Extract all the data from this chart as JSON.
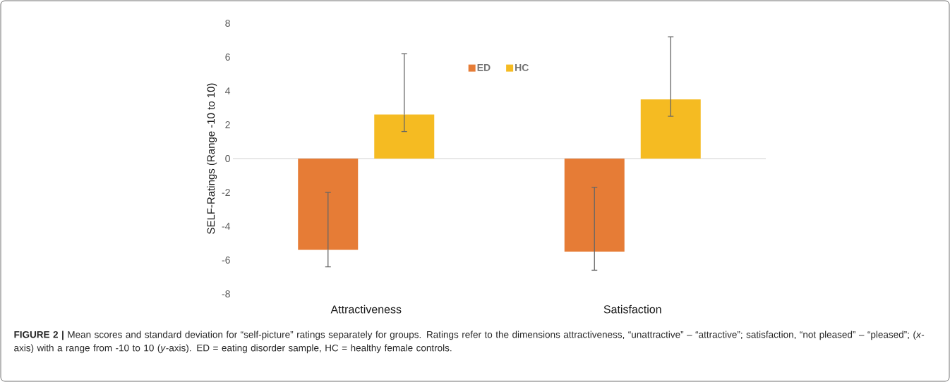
{
  "chart_data": {
    "type": "bar",
    "categories": [
      "Attractiveness",
      "Satisfaction"
    ],
    "series": [
      {
        "name": "ED",
        "color": "#e67c36",
        "values": [
          -5.4,
          -5.5
        ],
        "errors": [
          [
            -6.4,
            -2.0
          ],
          [
            -6.6,
            -1.7
          ]
        ]
      },
      {
        "name": "HC",
        "color": "#f5bb22",
        "values": [
          2.6,
          3.5
        ],
        "errors": [
          [
            1.6,
            6.2
          ],
          [
            2.5,
            7.2
          ]
        ]
      }
    ],
    "ylabel": "SELF-Ratings (Range -10 to 10)",
    "ylim": [
      -8,
      8
    ],
    "yticks": [
      -8,
      -6,
      -4,
      -2,
      0,
      2,
      4,
      6,
      8
    ],
    "legend": "top",
    "annotations": [
      "**FIGURE 2 |** Mean scores and standard deviation for “self-picture” ratings separately for groups. Ratings refer to the dimensions attractiveness, “unattractive” – “attractive”; satisfaction, “not pleased” – “pleased”; (*x*-axis) with a range from -10 to 10 (*y*-axis). ED = eating disorder sample, HC = healthy female controls."
    ]
  }
}
